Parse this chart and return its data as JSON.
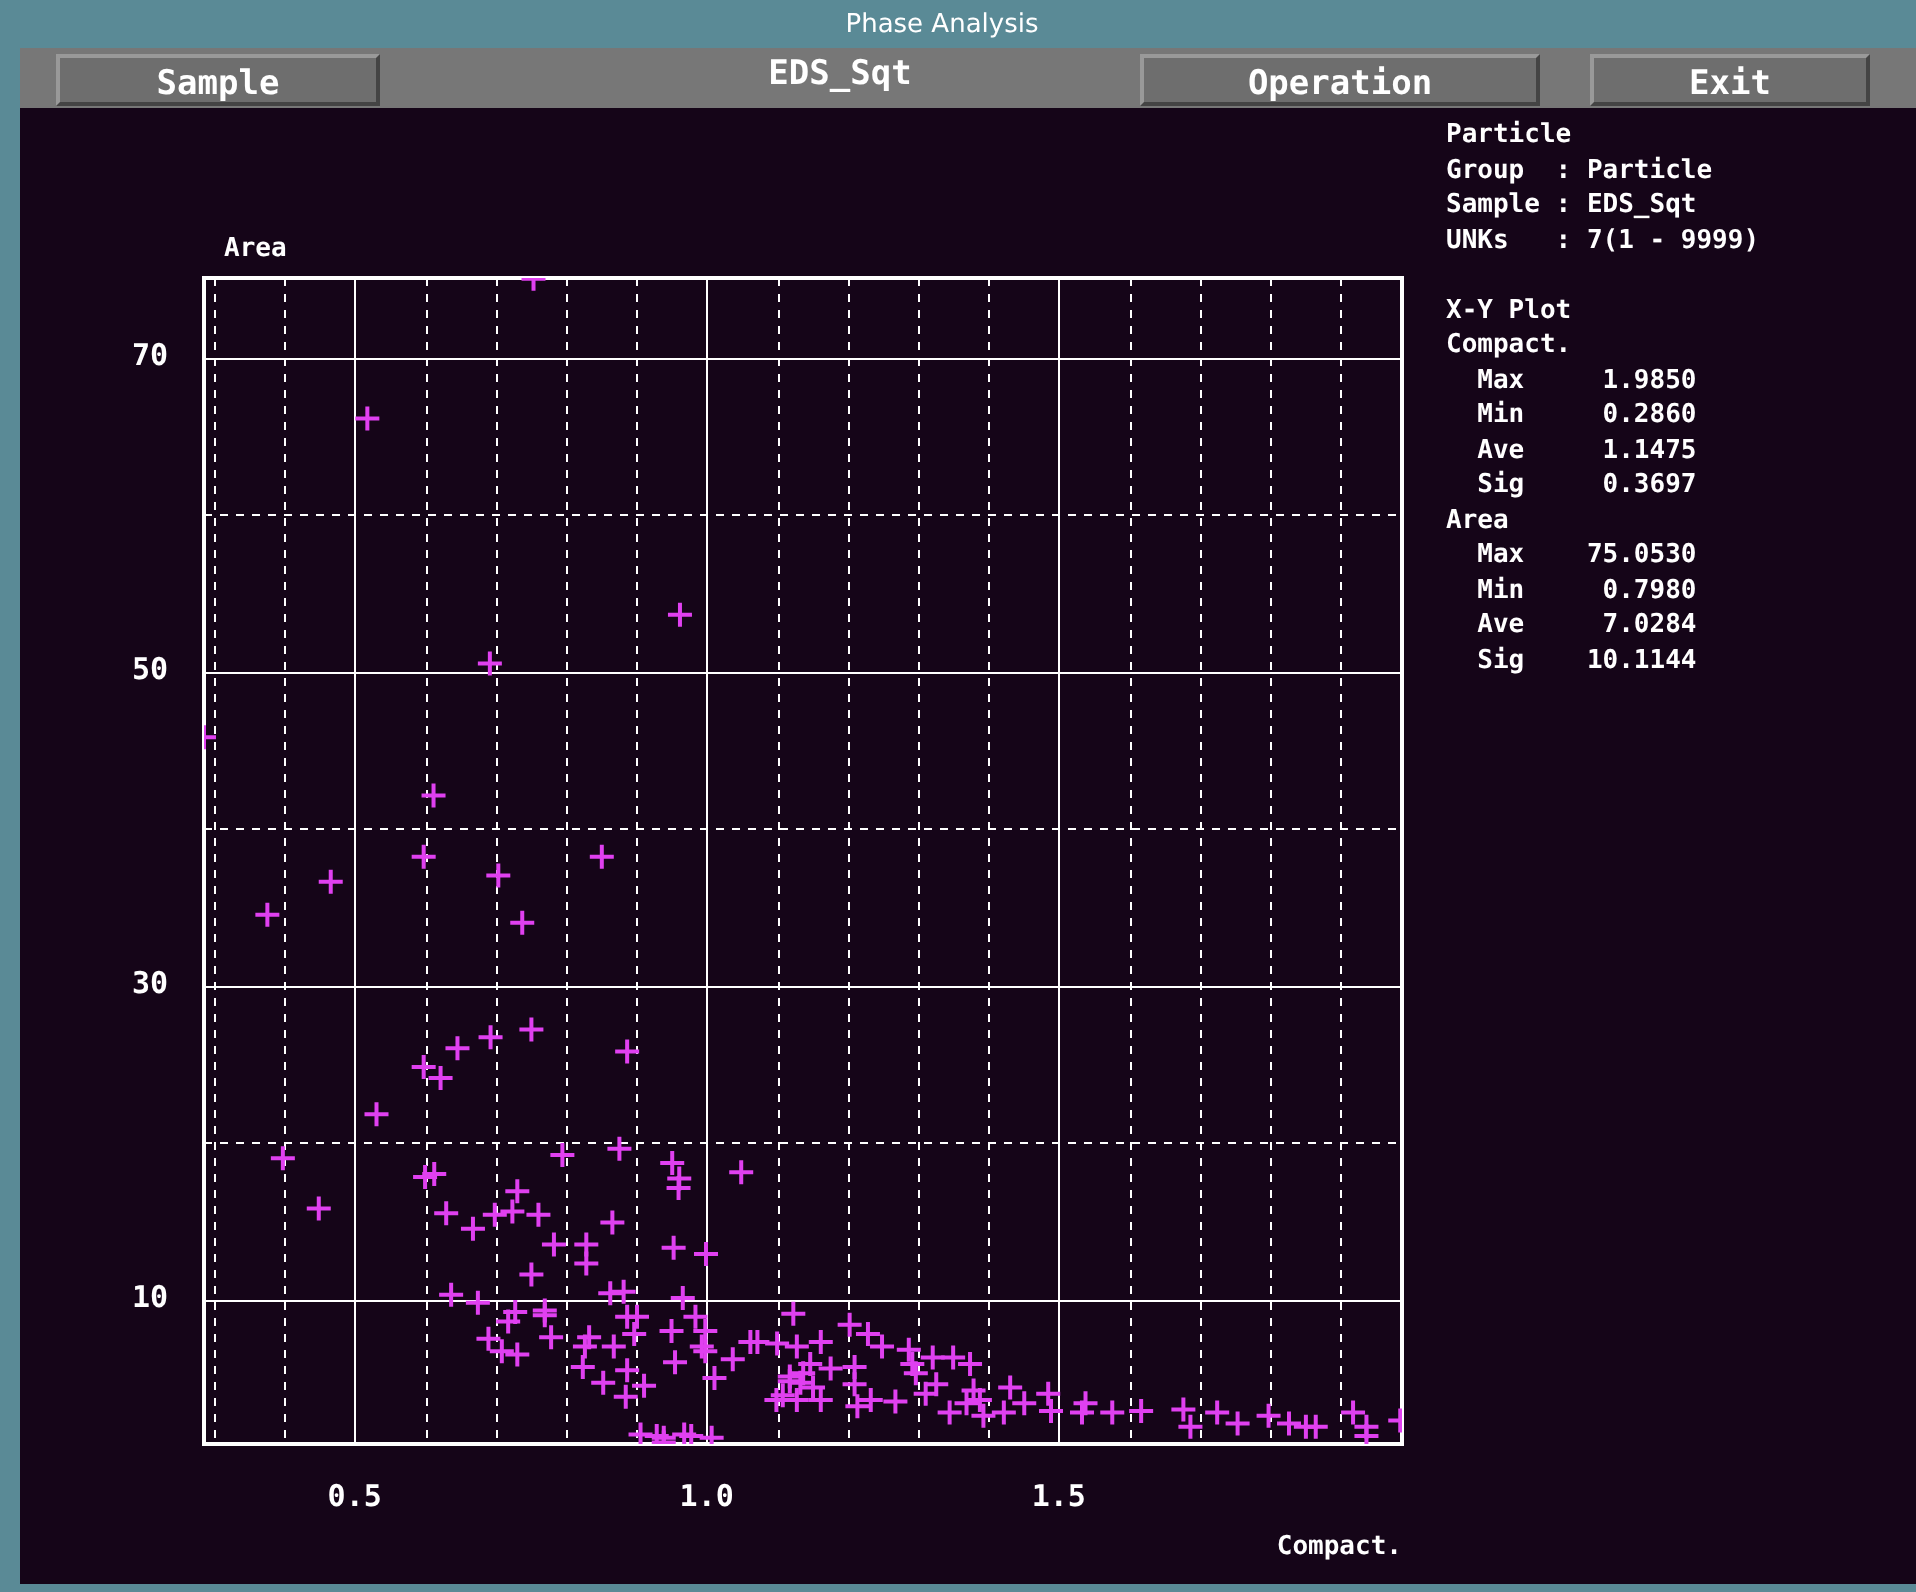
{
  "chart_data": {
    "type": "scatter",
    "title": "Phase Analysis",
    "subtitle": "EDS_Sqt",
    "xlabel": "Compact.",
    "ylabel": "Area",
    "annotations": [
      "Sample",
      "Operation",
      "Exit",
      "Particle",
      "Group  : Particle",
      "Sample : EDS_Sqt",
      "UNKs   : 7(1 - 9999)",
      "X-Y Plot",
      "Compact.",
      "  Max     1.9850",
      "  Min     0.2860",
      "  Ave     1.1475",
      "  Sig     0.3697",
      "Area",
      "  Max    75.0530",
      "  Min     0.7980",
      "  Ave     7.0284",
      "  Sig    10.1144"
    ],
    "xlim": [
      0.286,
      1.9875
    ],
    "ylim": [
      0.798,
      75.053
    ],
    "xticks": [
      {
        "value": 0.3,
        "label": null
      },
      {
        "value": 0.4,
        "label": null
      },
      {
        "value": 0.5,
        "label": "0.5"
      },
      {
        "value": 0.6,
        "label": null
      },
      {
        "value": 0.7,
        "label": null
      },
      {
        "value": 0.8,
        "label": null
      },
      {
        "value": 0.9,
        "label": null
      },
      {
        "value": 1.0,
        "label": "1.0"
      },
      {
        "value": 1.1,
        "label": null
      },
      {
        "value": 1.2,
        "label": null
      },
      {
        "value": 1.3,
        "label": null
      },
      {
        "value": 1.4,
        "label": null
      },
      {
        "value": 1.5,
        "label": "1.5"
      },
      {
        "value": 1.6,
        "label": null
      },
      {
        "value": 1.7,
        "label": null
      },
      {
        "value": 1.8,
        "label": null
      },
      {
        "value": 1.9,
        "label": null
      }
    ],
    "yticks": [
      10,
      {
        "value": 20,
        "label": null
      },
      30,
      {
        "value": 40,
        "label": null
      },
      50,
      {
        "value": 60,
        "label": null
      },
      70
    ],
    "grid": true,
    "marker": "cross",
    "legend": false,
    "series": [
      {
        "color": "#e040f0",
        "x": [
          0.754,
          0.518,
          0.962,
          0.692,
          0.286,
          0.612,
          0.598,
          0.851,
          0.704,
          0.466,
          0.376,
          0.738,
          0.751,
          0.693,
          0.646,
          0.887,
          0.598,
          0.622,
          0.531,
          0.398,
          0.795,
          0.876,
          0.951,
          0.961,
          0.96,
          1.049,
          0.6,
          0.613,
          0.449,
          0.731,
          0.724,
          0.699,
          0.761,
          0.63,
          0.668,
          0.866,
          0.783,
          0.829,
          0.829,
          0.953,
          0.999,
          0.751,
          0.637,
          0.675,
          0.863,
          0.882,
          0.966,
          0.728,
          0.718,
          0.77,
          0.77,
          0.779,
          0.69,
          0.709,
          0.731,
          0.833,
          0.827,
          0.824,
          0.853,
          0.868,
          0.887,
          0.901,
          0.897,
          0.887,
          0.885,
          0.911,
          0.95,
          0.955,
          0.984,
          0.998,
          0.993,
          0.998,
          1.011,
          1.037,
          1.062,
          1.072,
          1.123,
          0.906,
          0.929,
          0.939,
          0.968,
          0.978,
          1.007,
          0.939,
          1.108,
          1.118,
          1.137,
          1.151,
          1.203,
          1.229,
          1.249,
          1.162,
          1.128,
          1.1,
          1.147,
          1.176,
          1.118,
          1.133,
          1.099,
          1.128,
          1.162,
          1.21,
          1.21,
          1.214,
          1.233,
          1.268,
          1.287,
          1.292,
          1.297,
          1.321,
          1.35,
          1.374,
          1.326,
          1.311,
          1.345,
          1.379,
          1.388,
          1.369,
          1.393,
          1.431,
          1.422,
          1.451,
          1.485,
          1.489,
          1.538,
          1.533,
          1.576,
          1.617,
          1.677,
          1.687,
          1.725,
          1.754,
          1.798,
          1.827,
          1.851,
          1.865,
          1.918,
          1.937,
          1.937,
          1.985
        ],
        "values": [
          75.0,
          66.1,
          53.6,
          50.5,
          45.8,
          42.1,
          38.2,
          38.2,
          37.0,
          36.6,
          34.5,
          34.0,
          27.2,
          26.7,
          26.0,
          25.8,
          24.8,
          24.1,
          21.8,
          19.0,
          19.2,
          19.6,
          18.7,
          17.7,
          17.1,
          18.1,
          17.8,
          18.0,
          15.8,
          16.9,
          15.6,
          15.4,
          15.4,
          15.5,
          14.5,
          14.9,
          13.5,
          13.5,
          12.3,
          13.3,
          12.9,
          11.6,
          10.3,
          9.8,
          10.4,
          10.5,
          10.1,
          9.2,
          8.6,
          9.3,
          9.0,
          7.6,
          7.5,
          6.7,
          6.5,
          7.6,
          7.0,
          5.7,
          4.7,
          7.0,
          8.9,
          8.9,
          7.8,
          5.5,
          3.8,
          4.5,
          8.0,
          6.0,
          8.9,
          8.0,
          7.0,
          6.7,
          5.0,
          6.2,
          7.3,
          7.3,
          9.1,
          1.4,
          1.3,
          1.2,
          1.4,
          1.3,
          1.2,
          0.9,
          3.9,
          4.8,
          5.3,
          4.4,
          8.4,
          7.8,
          7.0,
          7.3,
          7.0,
          7.2,
          5.9,
          5.6,
          5.1,
          4.7,
          3.6,
          3.6,
          3.6,
          5.7,
          4.6,
          3.2,
          3.6,
          3.5,
          6.8,
          5.9,
          5.3,
          6.3,
          6.3,
          5.9,
          4.6,
          4.0,
          2.8,
          4.2,
          3.6,
          3.4,
          2.6,
          4.4,
          2.8,
          3.4,
          4.0,
          2.9,
          3.4,
          2.8,
          2.8,
          2.9,
          3.0,
          1.9,
          2.8,
          2.1,
          2.6,
          2.1,
          1.9,
          1.9,
          2.8,
          1.9,
          1.3,
          2.3
        ]
      }
    ]
  }
}
